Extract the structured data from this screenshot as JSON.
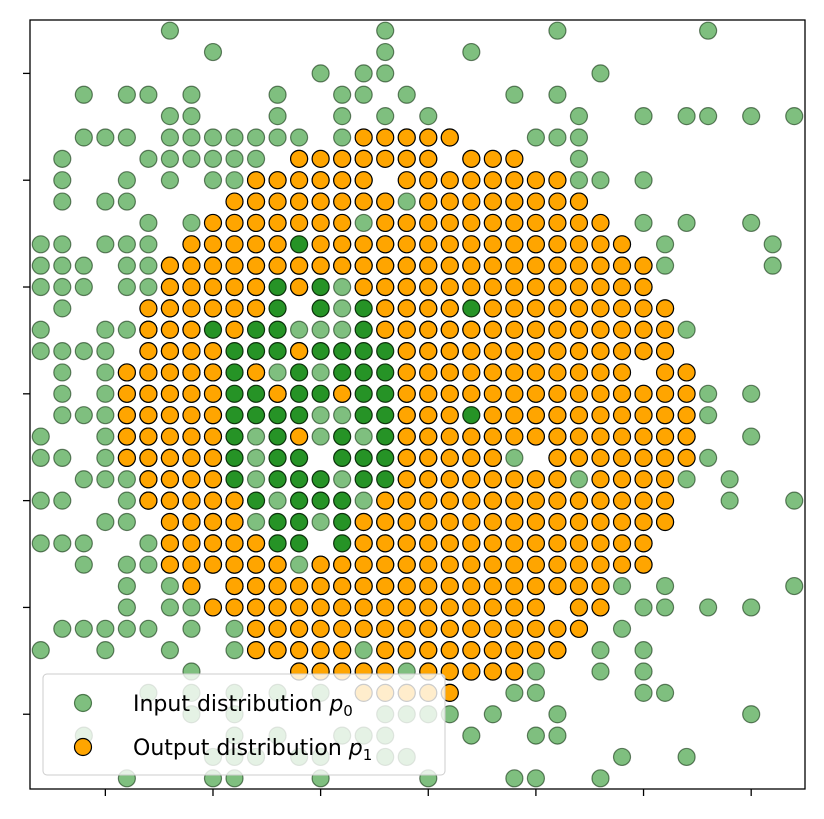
{
  "chart_data": {
    "type": "scatter",
    "title": "",
    "xlabel": "",
    "ylabel": "",
    "xlim": [
      -0.5,
      35.5
    ],
    "ylim": [
      -0.5,
      35.5
    ],
    "xticks": [
      3,
      8,
      13,
      18,
      23,
      28,
      33
    ],
    "yticks": [
      3,
      8,
      13,
      18,
      23,
      28,
      33
    ],
    "tick_labels_shown": false,
    "grid": false,
    "legend_position": "lower-left",
    "series": [
      {
        "name": "Input distribution $p_0$",
        "label_main": "Input distribution ",
        "label_sub": "p",
        "label_subscript": "0",
        "color": "#008000",
        "alpha": "partial (clustered)",
        "points": "dense cloud of green markers on an integer grid, densest near the center (x≈13, y≈17), sparse near the edges; individual points too numerous to enumerate"
      },
      {
        "name": "Output distribution $p_1$",
        "label_main": "Output distribution ",
        "label_sub": "p",
        "label_subscript": "1",
        "color": "#ffa500",
        "edgecolor": "#000000",
        "shape": "roughly circular disk on the integer grid, centered near x=17, y=17, radius ≈ 13 grid units, with a green-occupied hole near the center-left"
      }
    ]
  }
}
